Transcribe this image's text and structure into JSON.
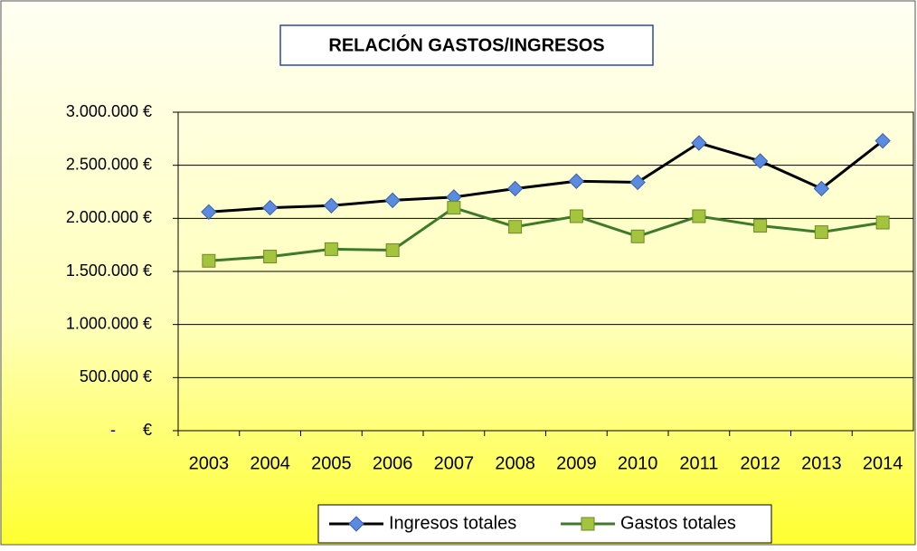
{
  "chart_data": {
    "type": "line",
    "title": "RELACIÓN GASTOS/INGRESOS",
    "categories": [
      "2003",
      "2004",
      "2005",
      "2006",
      "2007",
      "2008",
      "2009",
      "2010",
      "2011",
      "2012",
      "2013",
      "2014"
    ],
    "series": [
      {
        "name": "Ingresos totales",
        "color": "#5a8be0",
        "line_color": "#000000",
        "marker": "diamond",
        "values": [
          2060000,
          2100000,
          2120000,
          2170000,
          2200000,
          2280000,
          2350000,
          2340000,
          2710000,
          2540000,
          2280000,
          2730000
        ]
      },
      {
        "name": "Gastos totales",
        "color": "#a3c43c",
        "line_color": "#3f7a2a",
        "marker": "square",
        "values": [
          1600000,
          1640000,
          1710000,
          1700000,
          2100000,
          1920000,
          2020000,
          1830000,
          2020000,
          1930000,
          1870000,
          1960000
        ]
      }
    ],
    "ylim": [
      0,
      3000000
    ],
    "yticks": [
      {
        "value": 0,
        "label": "-      €"
      },
      {
        "value": 500000,
        "label": "500.000 €"
      },
      {
        "value": 1000000,
        "label": "1.000.000 €"
      },
      {
        "value": 1500000,
        "label": "1.500.000 €"
      },
      {
        "value": 2000000,
        "label": "2.000.000 €"
      },
      {
        "value": 2500000,
        "label": "2.500.000 €"
      },
      {
        "value": 3000000,
        "label": "3.000.000 €"
      }
    ],
    "grid": true,
    "legend": "bottom"
  }
}
